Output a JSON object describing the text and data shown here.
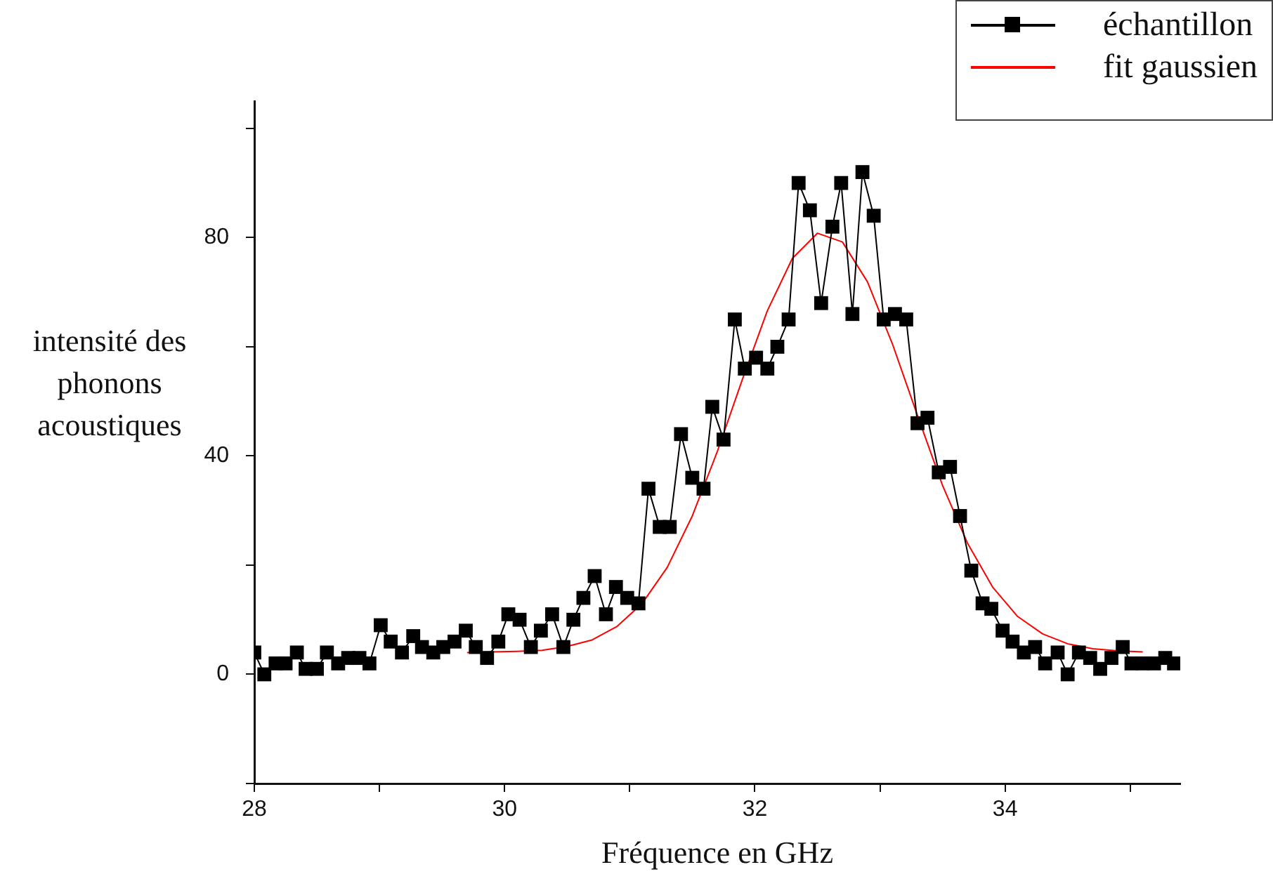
{
  "chart_data": {
    "type": "line",
    "xlabel": "Fréquence en GHz",
    "ylabel": "intensité des phonons acoustiques",
    "xlim": [
      28,
      35.4
    ],
    "ylim": [
      -20,
      105
    ],
    "xticks": [
      28,
      {
        "value": 29,
        "label": null
      },
      30,
      {
        "value": 31,
        "label": null
      },
      32,
      {
        "value": 33,
        "label": null
      },
      34,
      {
        "value": 35,
        "label": null
      }
    ],
    "yticks": [
      {
        "value": -20,
        "label": null
      },
      0,
      {
        "value": 20,
        "label": null
      },
      40,
      {
        "value": 60,
        "label": null
      },
      80,
      {
        "value": 100,
        "label": null
      }
    ],
    "grid": false,
    "legend": "top right",
    "series": [
      {
        "name": "échantillon",
        "color": "#000000",
        "marker": "square",
        "x": [
          28.0,
          28.08,
          28.17,
          28.25,
          28.34,
          28.41,
          28.5,
          28.58,
          28.67,
          28.75,
          28.84,
          28.92,
          29.01,
          29.09,
          29.18,
          29.27,
          29.34,
          29.43,
          29.51,
          29.6,
          29.69,
          29.77,
          29.86,
          29.95,
          30.03,
          30.12,
          30.21,
          30.29,
          30.38,
          30.47,
          30.55,
          30.63,
          30.72,
          30.81,
          30.89,
          30.98,
          31.07,
          31.15,
          31.24,
          31.32,
          31.41,
          31.5,
          31.59,
          31.66,
          31.75,
          31.84,
          31.92,
          32.01,
          32.1,
          32.18,
          32.27,
          32.35,
          32.44,
          32.53,
          32.62,
          32.69,
          32.78,
          32.86,
          32.95,
          33.03,
          33.12,
          33.21,
          33.3,
          33.38,
          33.47,
          33.56,
          33.64,
          33.73,
          33.82,
          33.89,
          33.98,
          34.06,
          34.15,
          34.24,
          34.32,
          34.42,
          34.5,
          34.59,
          34.68,
          34.76,
          34.85,
          34.94,
          35.01,
          35.1,
          35.19,
          35.28,
          35.35
        ],
        "values": [
          4,
          0,
          2,
          2,
          4,
          1,
          1,
          4,
          2,
          3,
          3,
          2,
          9,
          6,
          4,
          7,
          5,
          4,
          5,
          6,
          8,
          5,
          3,
          6,
          11,
          10,
          5,
          8,
          11,
          5,
          10,
          14,
          18,
          11,
          16,
          14,
          13,
          34,
          27,
          27,
          44,
          36,
          34,
          49,
          43,
          65,
          56,
          58,
          56,
          60,
          65,
          90,
          85,
          68,
          82,
          90,
          66,
          92,
          84,
          65,
          66,
          65,
          46,
          47,
          37,
          38,
          29,
          19,
          13,
          12,
          8,
          6,
          4,
          5,
          2,
          4,
          0,
          4,
          3,
          1,
          3,
          5,
          2,
          2,
          2,
          3,
          2
        ]
      },
      {
        "name": "fit gaussien",
        "color": "#ff0000",
        "marker": "none",
        "x": [
          29.7,
          29.9,
          30.1,
          30.3,
          30.5,
          30.7,
          30.9,
          31.1,
          31.3,
          31.5,
          31.7,
          31.9,
          32.1,
          32.3,
          32.5,
          32.7,
          32.9,
          33.1,
          33.3,
          33.5,
          33.7,
          33.9,
          34.1,
          34.3,
          34.5,
          34.7,
          34.9,
          35.1
        ],
        "values": [
          4.0,
          4.1,
          4.2,
          4.4,
          5.1,
          6.3,
          8.8,
          13.0,
          19.6,
          29.0,
          40.8,
          54.0,
          66.6,
          76.2,
          80.8,
          79.2,
          71.9,
          60.5,
          47.4,
          34.6,
          24.0,
          16.0,
          10.6,
          7.4,
          5.6,
          4.7,
          4.3,
          4.1
        ]
      }
    ]
  }
}
